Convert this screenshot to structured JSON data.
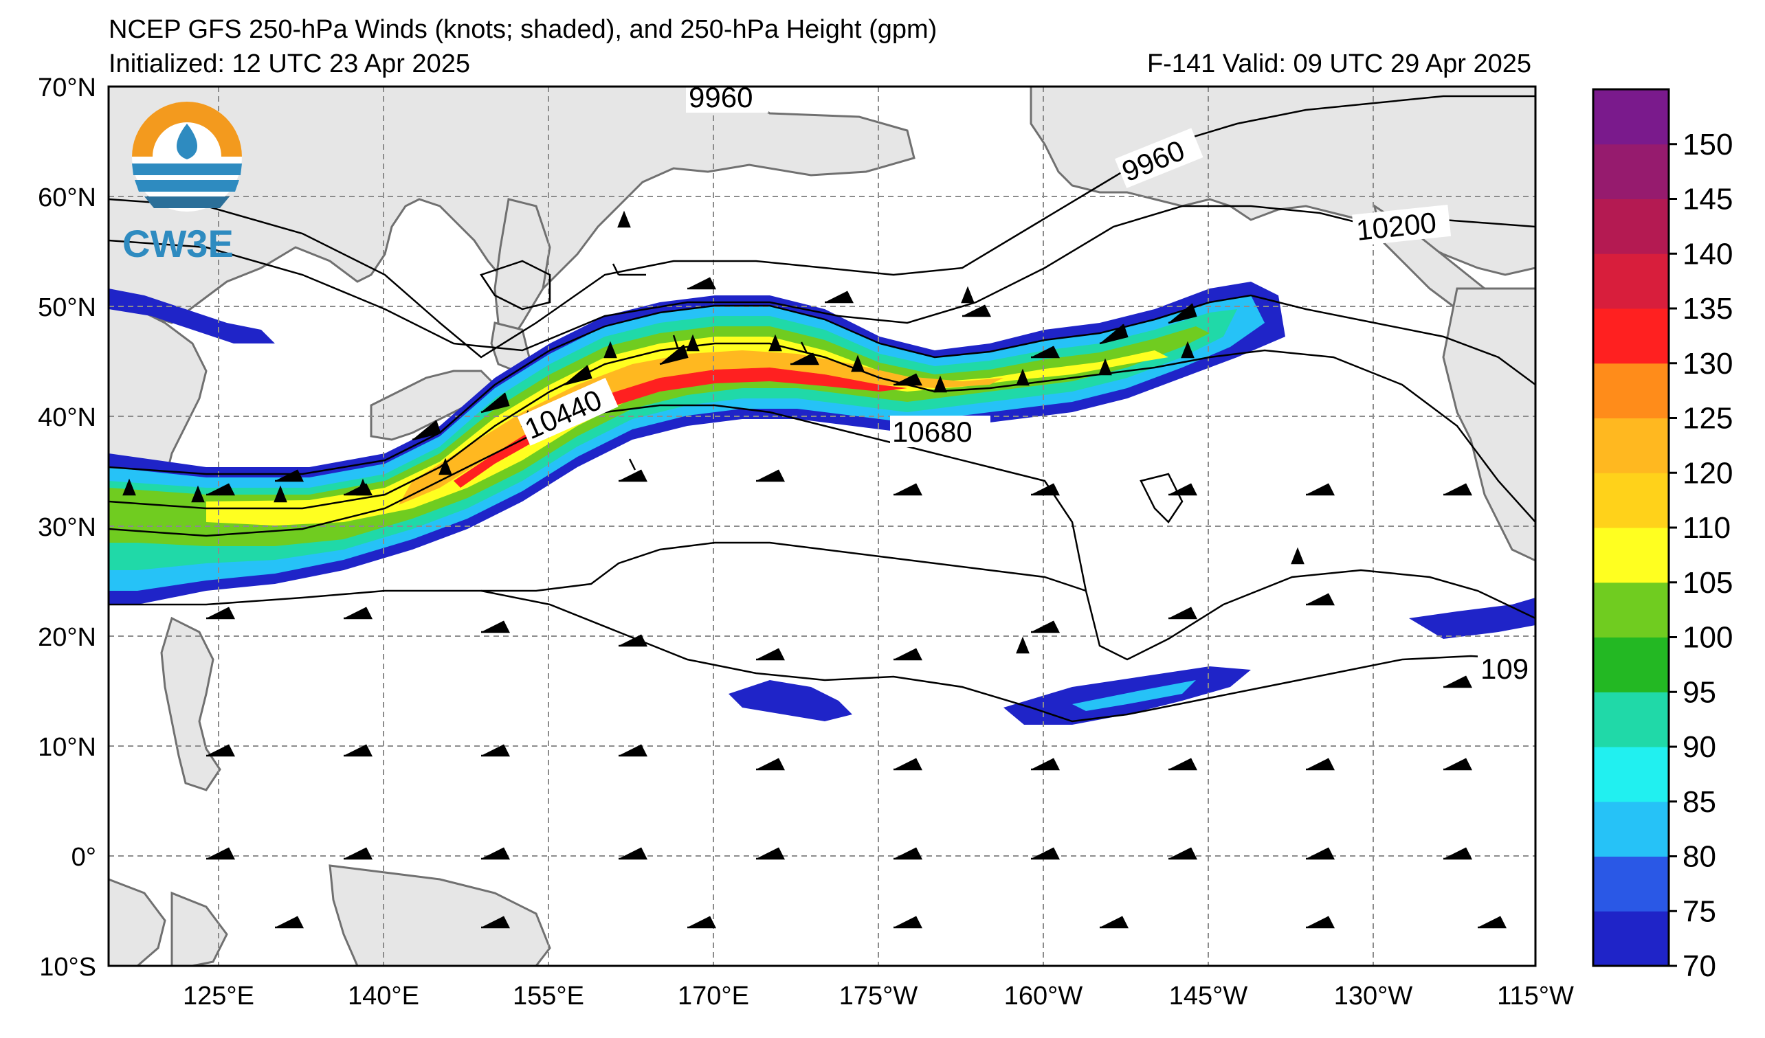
{
  "header": {
    "title": "NCEP GFS 250-hPa Winds (knots; shaded), and 250-hPa Height (gpm)",
    "initialized": "Initialized: 12 UTC 23 Apr 2025",
    "valid": "F-141  Valid: 09 UTC 29 Apr 2025"
  },
  "logo": {
    "text": "CW3E",
    "colors": {
      "orange": "#f39a1e",
      "blue": "#2e8bc0",
      "dark": "#2b6f99"
    }
  },
  "map": {
    "lat_labels": [
      "70°N",
      "60°N",
      "50°N",
      "40°N",
      "30°N",
      "20°N",
      "10°N",
      "0°",
      "10°S"
    ],
    "lon_labels": [
      "125°E",
      "140°E",
      "155°E",
      "170°E",
      "175°W",
      "160°W",
      "145°W",
      "130°W",
      "115°W"
    ],
    "contour_labels": [
      "9960",
      "9960",
      "10200",
      "10440",
      "10680",
      "109"
    ],
    "land_color": "#e6e6e6",
    "coast_color": "#707070",
    "grid_color": "#8c8c8c"
  },
  "colorbar": {
    "ticks": [
      "70",
      "75",
      "80",
      "85",
      "90",
      "95",
      "100",
      "105",
      "110",
      "120",
      "125",
      "130",
      "135",
      "140",
      "145",
      "150"
    ],
    "colors": [
      "#1f24c8",
      "#2a58e6",
      "#26c2f7",
      "#21f0f0",
      "#20d9a8",
      "#23b823",
      "#70cc20",
      "#ffff20",
      "#ffd21a",
      "#ffb820",
      "#ff8c1a",
      "#ff2020",
      "#d81e3c",
      "#b41a52",
      "#961b6e",
      "#7a1a8c"
    ]
  }
}
